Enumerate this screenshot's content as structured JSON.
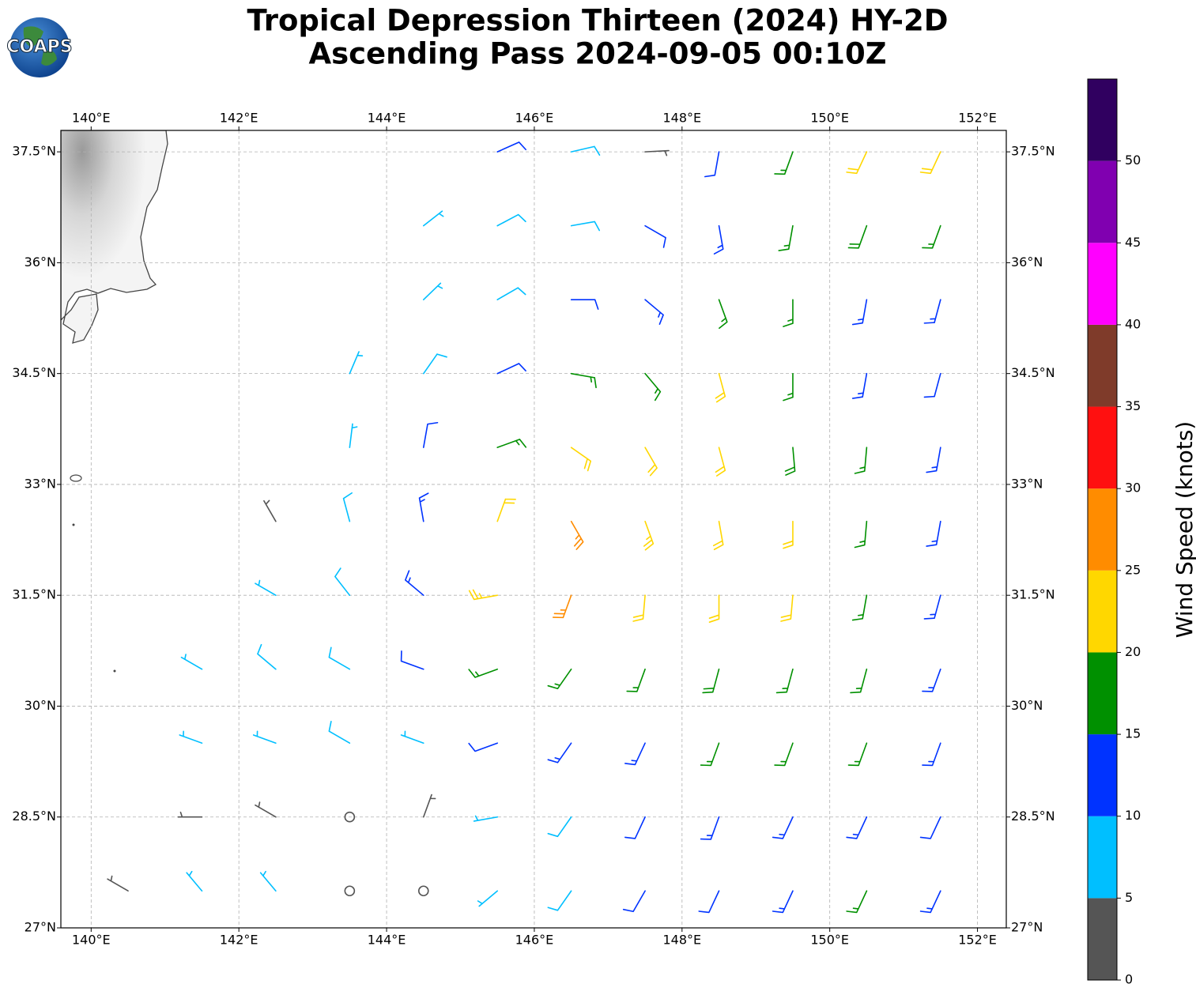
{
  "logo": "COAPS",
  "chart_data": {
    "type": "wind-barbs",
    "title": "Tropical Depression Thirteen (2024) HY-2D",
    "subtitle": "Ascending Pass 2024-09-05 00:10Z",
    "xlim": [
      139.59,
      152.39
    ],
    "ylim": [
      27,
      37.79
    ],
    "xticks": [
      {
        "value": 140,
        "label": "140°E"
      },
      {
        "value": 142,
        "label": "142°E"
      },
      {
        "value": 144,
        "label": "144°E"
      },
      {
        "value": 146,
        "label": "146°E"
      },
      {
        "value": 148,
        "label": "148°E"
      },
      {
        "value": 150,
        "label": "150°E"
      },
      {
        "value": 152,
        "label": "152°E"
      }
    ],
    "yticks": [
      {
        "value": 27,
        "label": "27°N"
      },
      {
        "value": 28.5,
        "label": "28.5°N"
      },
      {
        "value": 30,
        "label": "30°N"
      },
      {
        "value": 31.5,
        "label": "31.5°N"
      },
      {
        "value": 33,
        "label": "33°N"
      },
      {
        "value": 34.5,
        "label": "34.5°N"
      },
      {
        "value": 36,
        "label": "36°N"
      },
      {
        "value": 37.5,
        "label": "37.5°N"
      }
    ],
    "grid": true,
    "barbs": {
      "lon": [
        140.5,
        141.5,
        142.5,
        143.5,
        144.5,
        145.5,
        146.5,
        147.5,
        148.5,
        149.5,
        150.5,
        151.5
      ],
      "lat": [
        37.5,
        36.5,
        35.5,
        34.5,
        33.5,
        32.5,
        31.5,
        30.5,
        29.5,
        28.5,
        27.5
      ],
      "speed": [
        [
          null,
          null,
          null,
          null,
          null,
          10,
          8,
          4,
          10,
          15,
          20,
          22
        ],
        [
          null,
          null,
          null,
          null,
          7,
          9,
          8,
          10,
          13,
          16,
          18,
          17
        ],
        [
          null,
          null,
          null,
          null,
          7,
          9,
          11,
          13,
          15,
          15,
          14,
          13
        ],
        [
          null,
          null,
          null,
          7,
          8,
          12,
          15,
          17,
          20,
          16,
          14,
          12
        ],
        [
          null,
          null,
          null,
          7,
          10,
          17,
          20,
          22,
          22,
          18,
          15,
          13
        ],
        [
          null,
          null,
          3,
          8,
          13,
          22,
          27,
          23,
          22,
          20,
          16,
          13
        ],
        [
          null,
          null,
          7,
          9,
          13,
          24,
          27,
          22,
          20,
          22,
          16,
          13
        ],
        [
          null,
          6,
          8,
          9,
          10,
          16,
          17,
          16,
          18,
          17,
          15,
          13
        ],
        [
          null,
          7,
          7,
          8,
          7,
          10,
          13,
          14,
          15,
          16,
          15,
          13
        ],
        [
          null,
          3,
          4,
          2,
          3,
          6,
          9,
          12,
          13,
          14,
          14,
          12
        ],
        [
          4,
          5,
          7,
          1,
          2,
          6,
          8,
          10,
          12,
          14,
          16,
          13
        ]
      ],
      "direction": [
        [
          null,
          null,
          null,
          null,
          null,
          66,
          77,
          87,
          190,
          200,
          205,
          205
        ],
        [
          null,
          null,
          null,
          null,
          52,
          62,
          80,
          120,
          170,
          190,
          200,
          200
        ],
        [
          null,
          null,
          null,
          null,
          46,
          60,
          90,
          130,
          160,
          180,
          190,
          195
        ],
        [
          null,
          null,
          null,
          23,
          35,
          65,
          100,
          140,
          165,
          180,
          190,
          195
        ],
        [
          null,
          null,
          null,
          7,
          10,
          70,
          125,
          150,
          165,
          175,
          185,
          190
        ],
        [
          null,
          null,
          330,
          345,
          350,
          20,
          150,
          160,
          170,
          180,
          185,
          190
        ],
        [
          null,
          null,
          300,
          322,
          310,
          260,
          200,
          185,
          180,
          185,
          190,
          195
        ],
        [
          null,
          300,
          310,
          300,
          290,
          250,
          215,
          200,
          195,
          195,
          195,
          200
        ],
        [
          null,
          290,
          290,
          300,
          290,
          250,
          215,
          205,
          200,
          200,
          200,
          200
        ],
        [
          null,
          270,
          300,
          330,
          20,
          260,
          215,
          205,
          200,
          205,
          205,
          205
        ],
        [
          300,
          320,
          320,
          0,
          200,
          230,
          215,
          210,
          205,
          205,
          205,
          205
        ]
      ]
    },
    "colorbar": {
      "label": "Wind Speed (knots)",
      "lim": [
        0,
        55
      ],
      "bounds": [
        0,
        5,
        10,
        15,
        20,
        25,
        30,
        35,
        40,
        45,
        50,
        55
      ],
      "colors": [
        "#555555",
        "#00bfff",
        "#0033ff",
        "#009000",
        "#ffd700",
        "#ff8c00",
        "#ff1010",
        "#7f3b2a",
        "#ff00ff",
        "#8000b0",
        "#300060"
      ],
      "ticks": [
        0,
        5,
        10,
        15,
        20,
        25,
        30,
        35,
        40,
        45,
        50
      ]
    }
  }
}
